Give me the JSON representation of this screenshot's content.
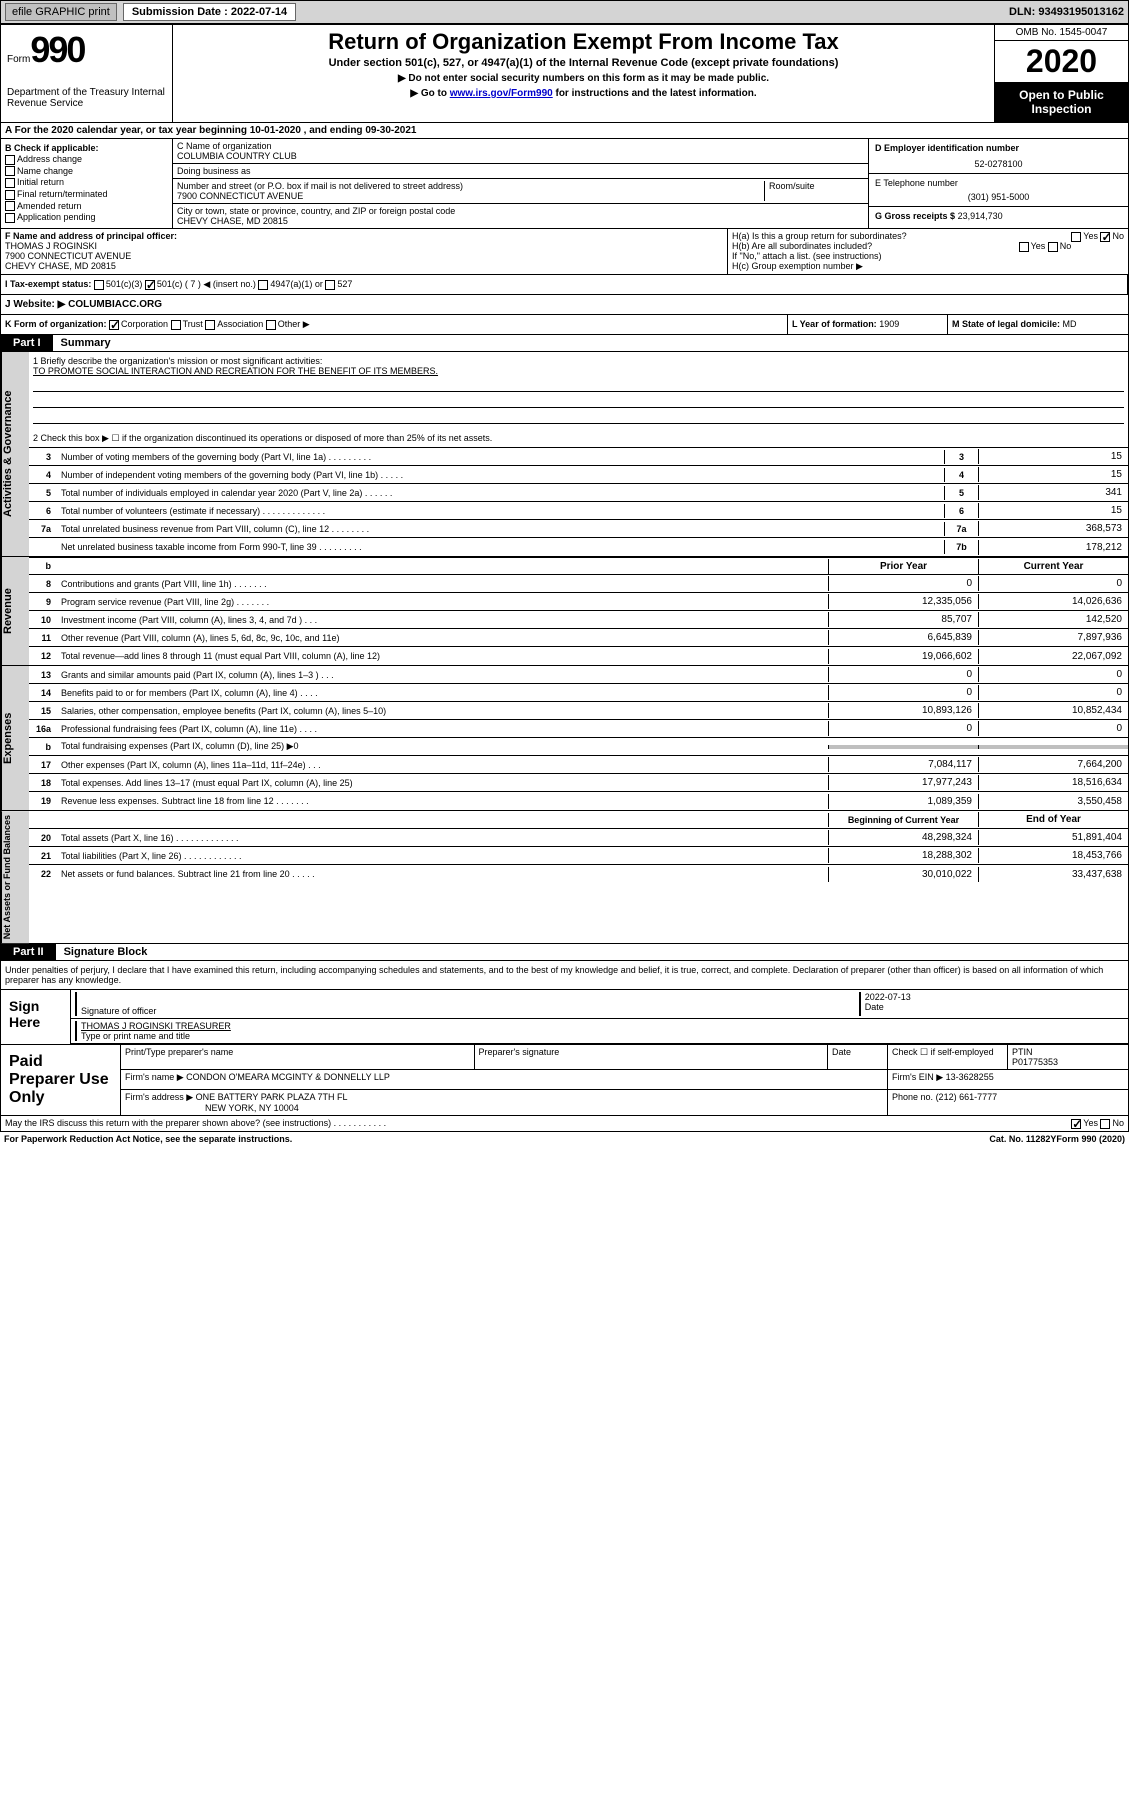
{
  "topbar": {
    "efile": "efile GRAPHIC print",
    "submission_label": "Submission Date : 2022-07-14",
    "dln": "DLN: 93493195013162"
  },
  "header": {
    "form_word": "Form",
    "form_num": "990",
    "dept": "Department of the Treasury Internal Revenue Service",
    "title": "Return of Organization Exempt From Income Tax",
    "subtitle": "Under section 501(c), 527, or 4947(a)(1) of the Internal Revenue Code (except private foundations)",
    "instr1": "▶ Do not enter social security numbers on this form as it may be made public.",
    "instr2_pre": "▶ Go to ",
    "instr2_link": "www.irs.gov/Form990",
    "instr2_post": " for instructions and the latest information.",
    "omb": "OMB No. 1545-0047",
    "year": "2020",
    "open": "Open to Public Inspection"
  },
  "period": "A For the 2020 calendar year, or tax year beginning 10-01-2020    , and ending 09-30-2021",
  "b": {
    "lbl": "B Check if applicable:",
    "items": [
      "Address change",
      "Name change",
      "Initial return",
      "Final return/terminated",
      "Amended return",
      "Application pending"
    ]
  },
  "c": {
    "name_lbl": "C Name of organization",
    "name": "COLUMBIA COUNTRY CLUB",
    "dba_lbl": "Doing business as",
    "addr_lbl": "Number and street (or P.O. box if mail is not delivered to street address)",
    "addr": "7900 CONNECTICUT AVENUE",
    "room_lbl": "Room/suite",
    "city_lbl": "City or town, state or province, country, and ZIP or foreign postal code",
    "city": "CHEVY CHASE, MD  20815"
  },
  "d": {
    "lbl": "D Employer identification number",
    "val": "52-0278100"
  },
  "e": {
    "lbl": "E Telephone number",
    "val": "(301) 951-5000"
  },
  "g": {
    "lbl": "G Gross receipts $",
    "val": "23,914,730"
  },
  "f": {
    "lbl": "F  Name and address of principal officer:",
    "name": "THOMAS J ROGINSKI",
    "addr1": "7900 CONNECTICUT AVENUE",
    "addr2": "CHEVY CHASE, MD  20815"
  },
  "h": {
    "a": "H(a)  Is this a group return for subordinates?",
    "b": "H(b)  Are all subordinates included?",
    "b_note": "If \"No,\" attach a list. (see instructions)",
    "c": "H(c)  Group exemption number ▶",
    "yes": "Yes",
    "no": "No"
  },
  "i": {
    "lbl": "I  Tax-exempt status:",
    "opts": [
      "501(c)(3)",
      "501(c) ( 7 ) ◀ (insert no.)",
      "4947(a)(1) or",
      "527"
    ]
  },
  "j": {
    "lbl": "J  Website: ▶",
    "val": "COLUMBIACC.ORG"
  },
  "k": {
    "lbl": "K Form of organization:",
    "opts": [
      "Corporation",
      "Trust",
      "Association",
      "Other ▶"
    ]
  },
  "l": {
    "lbl": "L Year of formation:",
    "val": "1909"
  },
  "m": {
    "lbl": "M State of legal domicile:",
    "val": "MD"
  },
  "part1": {
    "tag": "Part I",
    "title": "Summary"
  },
  "summary": {
    "l1_lbl": "1  Briefly describe the organization's mission or most significant activities:",
    "l1_val": "TO PROMOTE SOCIAL INTERACTION AND RECREATION FOR THE BENEFIT OF ITS MEMBERS.",
    "l2": "2    Check this box ▶ ☐  if the organization discontinued its operations or disposed of more than 25% of its net assets.",
    "lines_ag": [
      {
        "n": "3",
        "d": "Number of voting members of the governing body (Part VI, line 1a)   .    .    .    .    .    .    .    .    .",
        "box": "3",
        "v": "15"
      },
      {
        "n": "4",
        "d": "Number of independent voting members of the governing body (Part VI, line 1b)  .    .    .    .    .",
        "box": "4",
        "v": "15"
      },
      {
        "n": "5",
        "d": "Total number of individuals employed in calendar year 2020 (Part V, line 2a)   .    .    .    .    .    .",
        "box": "5",
        "v": "341"
      },
      {
        "n": "6",
        "d": "Total number of volunteers (estimate if necessary)   .    .    .    .    .    .    .    .    .    .    .    .    .",
        "box": "6",
        "v": "15"
      },
      {
        "n": "7a",
        "d": "Total unrelated business revenue from Part VIII, column (C), line 12  .    .    .    .    .    .    .    .",
        "box": "7a",
        "v": "368,573"
      },
      {
        "n": "",
        "d": "Net unrelated business taxable income from Form 990-T, line 39   .    .    .    .    .    .    .    .    .",
        "box": "7b",
        "v": "178,212"
      }
    ],
    "col_hdr_prior": "Prior Year",
    "col_hdr_current": "Current Year",
    "revenue": [
      {
        "n": "8",
        "d": "Contributions and grants (Part VIII, line 1h)   .    .    .    .    .    .    .",
        "p": "0",
        "c": "0"
      },
      {
        "n": "9",
        "d": "Program service revenue (Part VIII, line 2g)   .    .    .    .    .    .    .",
        "p": "12,335,056",
        "c": "14,026,636"
      },
      {
        "n": "10",
        "d": "Investment income (Part VIII, column (A), lines 3, 4, and 7d )   .    .    .",
        "p": "85,707",
        "c": "142,520"
      },
      {
        "n": "11",
        "d": "Other revenue (Part VIII, column (A), lines 5, 6d, 8c, 9c, 10c, and 11e)",
        "p": "6,645,839",
        "c": "7,897,936"
      },
      {
        "n": "12",
        "d": "Total revenue—add lines 8 through 11 (must equal Part VIII, column (A), line 12)",
        "p": "19,066,602",
        "c": "22,067,092"
      }
    ],
    "expenses": [
      {
        "n": "13",
        "d": "Grants and similar amounts paid (Part IX, column (A), lines 1–3 )   .    .    .",
        "p": "0",
        "c": "0"
      },
      {
        "n": "14",
        "d": "Benefits paid to or for members (Part IX, column (A), line 4)   .    .    .    .",
        "p": "0",
        "c": "0"
      },
      {
        "n": "15",
        "d": "Salaries, other compensation, employee benefits (Part IX, column (A), lines 5–10)",
        "p": "10,893,126",
        "c": "10,852,434"
      },
      {
        "n": "16a",
        "d": "Professional fundraising fees (Part IX, column (A), line 11e)   .    .    .    .",
        "p": "0",
        "c": "0"
      },
      {
        "n": "b",
        "d": "Total fundraising expenses (Part IX, column (D), line 25) ▶0",
        "p": "",
        "c": "",
        "shade": true
      },
      {
        "n": "17",
        "d": "Other expenses (Part IX, column (A), lines 11a–11d, 11f–24e)   .    .    .",
        "p": "7,084,117",
        "c": "7,664,200"
      },
      {
        "n": "18",
        "d": "Total expenses. Add lines 13–17 (must equal Part IX, column (A), line 25)",
        "p": "17,977,243",
        "c": "18,516,634"
      },
      {
        "n": "19",
        "d": "Revenue less expenses. Subtract line 18 from line 12   .    .    .    .    .    .    .",
        "p": "1,089,359",
        "c": "3,550,458"
      }
    ],
    "col_hdr_begin": "Beginning of Current Year",
    "col_hdr_end": "End of Year",
    "netassets": [
      {
        "n": "20",
        "d": "Total assets (Part X, line 16)   .    .    .    .    .    .    .    .    .    .    .    .    .",
        "p": "48,298,324",
        "c": "51,891,404"
      },
      {
        "n": "21",
        "d": "Total liabilities (Part X, line 26)   .    .    .    .    .    .    .    .    .    .    .    .",
        "p": "18,288,302",
        "c": "18,453,766"
      },
      {
        "n": "22",
        "d": "Net assets or fund balances. Subtract line 21 from line 20   .    .    .    .    .",
        "p": "30,010,022",
        "c": "33,437,638"
      }
    ]
  },
  "sidelabels": {
    "ag": "Activities & Governance",
    "rev": "Revenue",
    "exp": "Expenses",
    "na": "Net Assets or Fund Balances"
  },
  "part2": {
    "tag": "Part II",
    "title": "Signature Block"
  },
  "sig": {
    "decl": "Under penalties of perjury, I declare that I have examined this return, including accompanying schedules and statements, and to the best of my knowledge and belief, it is true, correct, and complete. Declaration of preparer (other than officer) is based on all information of which preparer has any knowledge.",
    "sign_here": "Sign Here",
    "sig_officer": "Signature of officer",
    "date": "Date",
    "date_val": "2022-07-13",
    "name": "THOMAS J ROGINSKI TREASURER",
    "type_lbl": "Type or print name and title"
  },
  "paid": {
    "lbl": "Paid Preparer Use Only",
    "hdr": [
      "Print/Type preparer's name",
      "Preparer's signature",
      "Date"
    ],
    "check_lbl": "Check ☐ if self-employed",
    "ptin_lbl": "PTIN",
    "ptin": "P01775353",
    "firm_lbl": "Firm's name      ▶",
    "firm": "CONDON O'MEARA MCGINTY & DONNELLY LLP",
    "ein_lbl": "Firm's EIN ▶",
    "ein": "13-3628255",
    "addr_lbl": "Firm's address ▶",
    "addr1": "ONE BATTERY PARK PLAZA 7TH FL",
    "addr2": "NEW YORK, NY  10004",
    "phone_lbl": "Phone no.",
    "phone": "(212) 661-7777"
  },
  "discuss": {
    "q": "May the IRS discuss this return with the preparer shown above? (see instructions)   .    .    .    .    .    .    .    .    .    .    .",
    "yes": "Yes",
    "no": "No"
  },
  "footer": {
    "left": "For Paperwork Reduction Act Notice, see the separate instructions.",
    "mid": "Cat. No. 11282Y",
    "right": "Form 990 (2020)"
  }
}
